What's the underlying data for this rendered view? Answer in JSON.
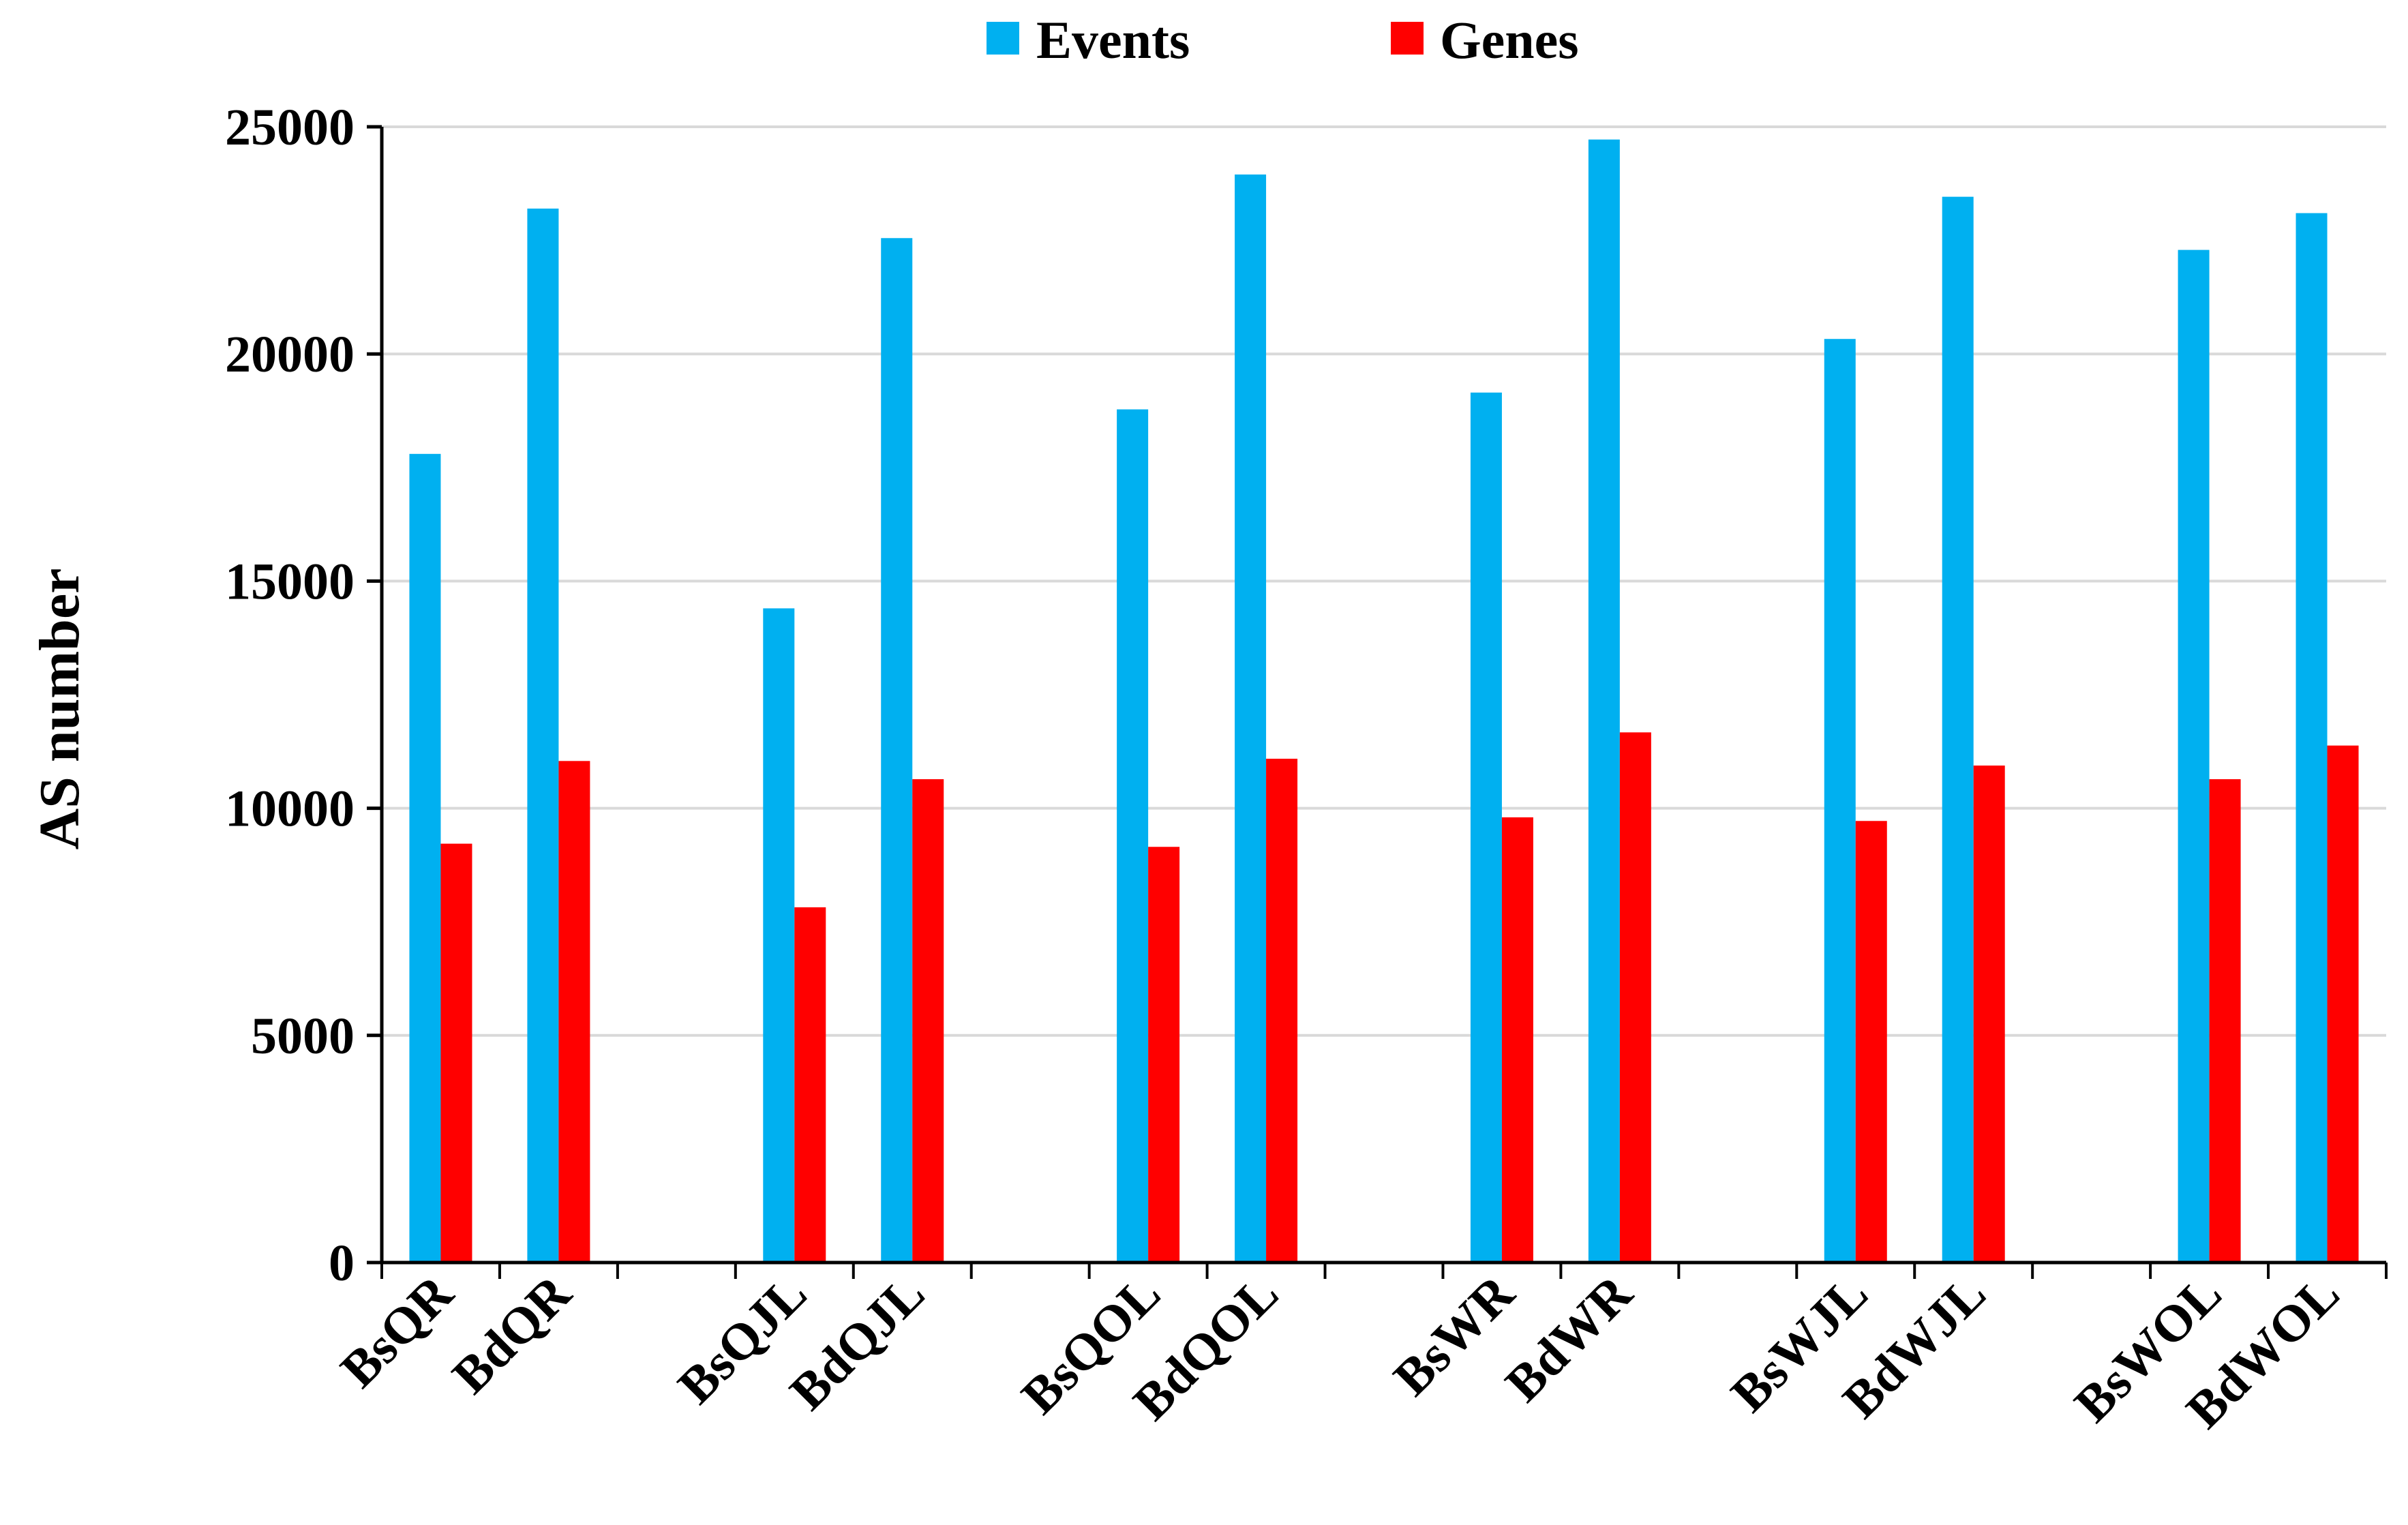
{
  "chart_data": {
    "type": "bar",
    "title": "",
    "xlabel": "",
    "ylabel": "AS number",
    "ylim": [
      0,
      25000
    ],
    "yticks": [
      0,
      5000,
      10000,
      15000,
      20000,
      25000
    ],
    "grid": true,
    "legend_position": "top-center",
    "slots": [
      "BsQR",
      "BdQR",
      "",
      "BsQJL",
      "BdQJL",
      "",
      "BsQOL",
      "BdQOL",
      "",
      "BsWR",
      "BdWR",
      "",
      "BsWJL",
      "BdWJL",
      "",
      "BsWOL",
      "BdWOL"
    ],
    "categories": [
      "BsQR",
      "BdQR",
      "BsQJL",
      "BdQJL",
      "BsQOL",
      "BdQOL",
      "BsWR",
      "BdWR",
      "BsWJL",
      "BdWJL",
      "BsWOL",
      "BdWOL"
    ],
    "series": [
      {
        "name": "Events",
        "color": "#00B0F0",
        "values": [
          17800,
          23200,
          14400,
          22550,
          18780,
          23950,
          19150,
          24720,
          20330,
          23460,
          22290,
          23100
        ]
      },
      {
        "name": "Genes",
        "color": "#FF0000",
        "values": [
          9220,
          11040,
          7820,
          10640,
          9150,
          11090,
          9800,
          11670,
          9720,
          10940,
          10640,
          11380
        ]
      }
    ]
  }
}
